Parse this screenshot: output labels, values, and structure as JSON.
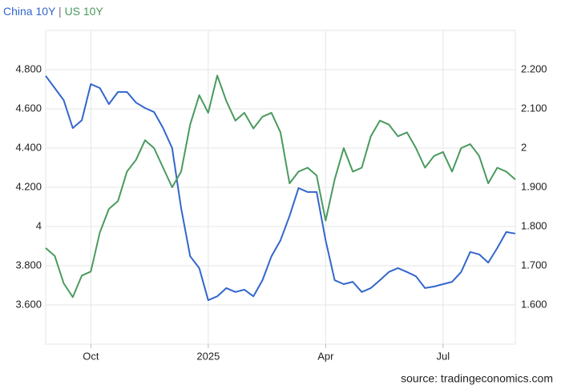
{
  "chart_data": {
    "type": "line",
    "legend_separator": "|",
    "source": "source: tradingeconomics.com",
    "categories": [
      null,
      null,
      null,
      null,
      null,
      "Oct",
      null,
      null,
      null,
      null,
      null,
      null,
      null,
      null,
      null,
      null,
      null,
      null,
      "2025",
      null,
      null,
      null,
      null,
      null,
      null,
      null,
      null,
      null,
      null,
      null,
      null,
      "Apr",
      null,
      null,
      null,
      null,
      null,
      null,
      null,
      null,
      null,
      null,
      null,
      null,
      "Jul",
      null,
      null,
      null,
      null,
      null,
      null,
      null,
      null
    ],
    "series": [
      {
        "name": "China 10Y",
        "color": "#3366cc",
        "axis": "y2",
        "values": [
          2.184,
          2.153,
          2.122,
          2.051,
          2.071,
          2.163,
          2.153,
          2.112,
          2.143,
          2.143,
          2.116,
          2.102,
          2.092,
          2.051,
          2.0,
          1.847,
          1.724,
          1.694,
          1.612,
          1.622,
          1.643,
          1.633,
          1.639,
          1.622,
          1.663,
          1.724,
          1.765,
          1.827,
          1.898,
          1.888,
          1.888,
          1.765,
          1.663,
          1.653,
          1.659,
          1.633,
          1.643,
          1.663,
          1.684,
          1.694,
          1.684,
          1.673,
          1.643,
          1.647,
          1.653,
          1.659,
          1.684,
          1.735,
          1.729,
          1.708,
          1.745,
          1.786,
          1.782
        ]
      },
      {
        "name": "US 10Y",
        "color": "#4a9a5e",
        "values": [
          3.89,
          3.85,
          3.71,
          3.64,
          3.75,
          3.77,
          3.97,
          4.09,
          4.13,
          4.28,
          4.34,
          4.44,
          4.4,
          4.3,
          4.2,
          4.28,
          4.52,
          4.67,
          4.58,
          4.77,
          4.64,
          4.54,
          4.58,
          4.5,
          4.56,
          4.58,
          4.48,
          4.22,
          4.28,
          4.3,
          4.26,
          4.03,
          4.24,
          4.4,
          4.28,
          4.3,
          4.46,
          4.54,
          4.52,
          4.46,
          4.48,
          4.4,
          4.3,
          4.36,
          4.38,
          4.28,
          4.4,
          4.42,
          4.36,
          4.22,
          4.3,
          4.28,
          4.24
        ]
      }
    ],
    "ylim": [
      3.4,
      5.0
    ],
    "yticks": [
      {
        "value": 3.6,
        "label": "3.600"
      },
      {
        "value": 3.8,
        "label": "3.800"
      },
      4,
      {
        "value": 4.2,
        "label": "4.200"
      },
      {
        "value": 4.4,
        "label": "4.400"
      },
      {
        "value": 4.6,
        "label": "4.600"
      },
      {
        "value": 4.8,
        "label": "4.800"
      }
    ],
    "y2lim": [
      1.5,
      2.3
    ],
    "y2ticks": [
      {
        "value": 1.6,
        "label": "1.600"
      },
      {
        "value": 1.7,
        "label": "1.700"
      },
      {
        "value": 1.8,
        "label": "1.800"
      },
      {
        "value": 1.9,
        "label": "1.900"
      },
      2,
      {
        "value": 2.1,
        "label": "2.100"
      },
      {
        "value": 2.2,
        "label": "2.200"
      }
    ],
    "grid": true
  }
}
